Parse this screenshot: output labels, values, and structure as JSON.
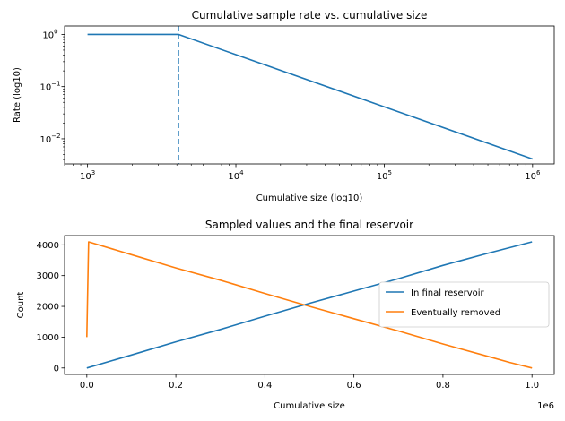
{
  "chart_data": [
    {
      "type": "line",
      "title": "Cumulative sample rate vs. cumulative size",
      "xlabel": "Cumulative size (log10)",
      "ylabel": "Rate (log10)",
      "xscale": "log",
      "yscale": "log",
      "xlim": [
        700,
        1400000
      ],
      "ylim": [
        0.0033,
        1.45
      ],
      "grid": false,
      "x_ticks": [
        {
          "value": 1000,
          "base": "10",
          "exp": "3"
        },
        {
          "value": 10000,
          "base": "10",
          "exp": "4"
        },
        {
          "value": 100000,
          "base": "10",
          "exp": "5"
        },
        {
          "value": 1000000,
          "base": "10",
          "exp": "6"
        }
      ],
      "y_ticks": [
        {
          "value": 0.01,
          "base": "10",
          "exp": "−2"
        },
        {
          "value": 0.1,
          "base": "10",
          "exp": "−1"
        },
        {
          "value": 1,
          "base": "10",
          "exp": "0"
        }
      ],
      "series": [
        {
          "color": "#1f77b4",
          "x": [
            1000,
            2000,
            3000,
            4096,
            10000,
            100000,
            1000000
          ],
          "y": [
            1,
            1,
            1,
            1,
            0.41,
            0.041,
            0.0041
          ]
        }
      ],
      "vlines": [
        {
          "x": 4096,
          "color": "#1f77b4",
          "style": "dashed"
        }
      ]
    },
    {
      "type": "line",
      "title": "Sampled values and the final reservoir",
      "xlabel": "Cumulative size",
      "ylabel": "Count",
      "x_offset_label": "1e6",
      "xlim": [
        -0.05,
        1.05
      ],
      "ylim": [
        -210,
        4300
      ],
      "grid": false,
      "legend": "center-right",
      "x_ticks": [
        "0.0",
        "0.2",
        "0.4",
        "0.6",
        "0.8",
        "1.0"
      ],
      "y_ticks": [
        "0",
        "1000",
        "2000",
        "3000",
        "4000"
      ],
      "series": [
        {
          "name": "In final reservoir",
          "color": "#1f77b4",
          "x": [
            0.0,
            0.1,
            0.2,
            0.3,
            0.4,
            0.5,
            0.6,
            0.7,
            0.8,
            0.9,
            1.0
          ],
          "y": [
            0,
            420,
            850,
            1250,
            1680,
            2100,
            2500,
            2900,
            3330,
            3720,
            4096
          ]
        },
        {
          "name": "Eventually removed",
          "color": "#ff7f0e",
          "x": [
            0.0,
            0.004,
            0.1,
            0.2,
            0.3,
            0.4,
            0.5,
            0.6,
            0.7,
            0.8,
            0.9,
            0.95,
            1.0
          ],
          "y": [
            1000,
            4096,
            3680,
            3250,
            2850,
            2420,
            2000,
            1600,
            1200,
            780,
            380,
            180,
            0
          ]
        }
      ]
    }
  ]
}
